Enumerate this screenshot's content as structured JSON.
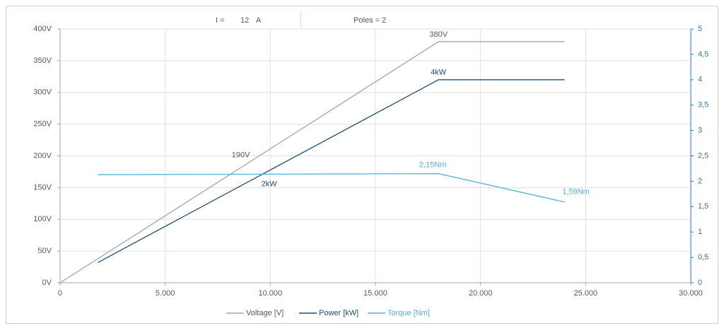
{
  "chart_data": {
    "type": "line",
    "info": [
      {
        "label": "I =",
        "value": 12,
        "unit": "A"
      },
      {
        "label": "Poles =",
        "value": 2
      }
    ],
    "series": [
      {
        "name": "Voltage [V]",
        "color": "#a6a6a6",
        "axis": "y",
        "x": [
          0,
          18000,
          24000
        ],
        "values": [
          0,
          380,
          380
        ]
      },
      {
        "name": "Power [kW]",
        "color": "#1f4e79",
        "axis": "y2",
        "x": [
          1800,
          18000,
          24000
        ],
        "values": [
          0.4,
          4,
          4
        ]
      },
      {
        "name": "Torque [Nm]",
        "color": "#4fb3d9",
        "axis": "y2",
        "x": [
          1800,
          18000,
          24000
        ],
        "values": [
          2.13,
          2.15,
          1.59
        ]
      }
    ],
    "annotations": [
      {
        "text": "380V",
        "x": 18000,
        "y": 380,
        "axis": "y",
        "series": 0
      },
      {
        "text": "190V",
        "x": 9000,
        "y": 190,
        "axis": "y",
        "series": 0
      },
      {
        "text": "4kW",
        "x": 18000,
        "y": 4,
        "axis": "y2",
        "series": 1
      },
      {
        "text": "2kW",
        "x": 9000,
        "y": 2,
        "axis": "y2",
        "series": 1
      },
      {
        "text": "2,15Nm",
        "x": 18000,
        "y": 2.15,
        "axis": "y2",
        "series": 2
      },
      {
        "text": "1,59Nm",
        "x": 24000,
        "y": 1.59,
        "axis": "y2",
        "series": 2
      }
    ],
    "xlim": [
      0,
      30000
    ],
    "xticks": [
      0,
      {
        "value": 5000,
        "label": "5.000"
      },
      {
        "value": 10000,
        "label": "10.000"
      },
      {
        "value": 15000,
        "label": "15.000"
      },
      {
        "value": 20000,
        "label": "20.000"
      },
      {
        "value": 25000,
        "label": "25.000"
      },
      {
        "value": 30000,
        "label": "30.000"
      }
    ],
    "ylim": [
      0,
      400
    ],
    "yticks": [
      {
        "value": 0,
        "label": "0V"
      },
      {
        "value": 50,
        "label": "50V"
      },
      {
        "value": 100,
        "label": "100V"
      },
      {
        "value": 150,
        "label": "150V"
      },
      {
        "value": 200,
        "label": "200V"
      },
      {
        "value": 250,
        "label": "250V"
      },
      {
        "value": 300,
        "label": "300V"
      },
      {
        "value": 350,
        "label": "350V"
      },
      {
        "value": 400,
        "label": "400V"
      }
    ],
    "y2lim": [
      0,
      5
    ],
    "y2ticks": [
      0,
      {
        "value": 0.5,
        "label": "0,5"
      },
      1,
      {
        "value": 1.5,
        "label": "1,5"
      },
      2,
      {
        "value": 2.5,
        "label": "2,5"
      },
      3,
      {
        "value": 3.5,
        "label": "3,5"
      },
      4,
      {
        "value": 4.5,
        "label": "4,5"
      },
      5
    ],
    "grid": true,
    "legend": "bottom"
  }
}
